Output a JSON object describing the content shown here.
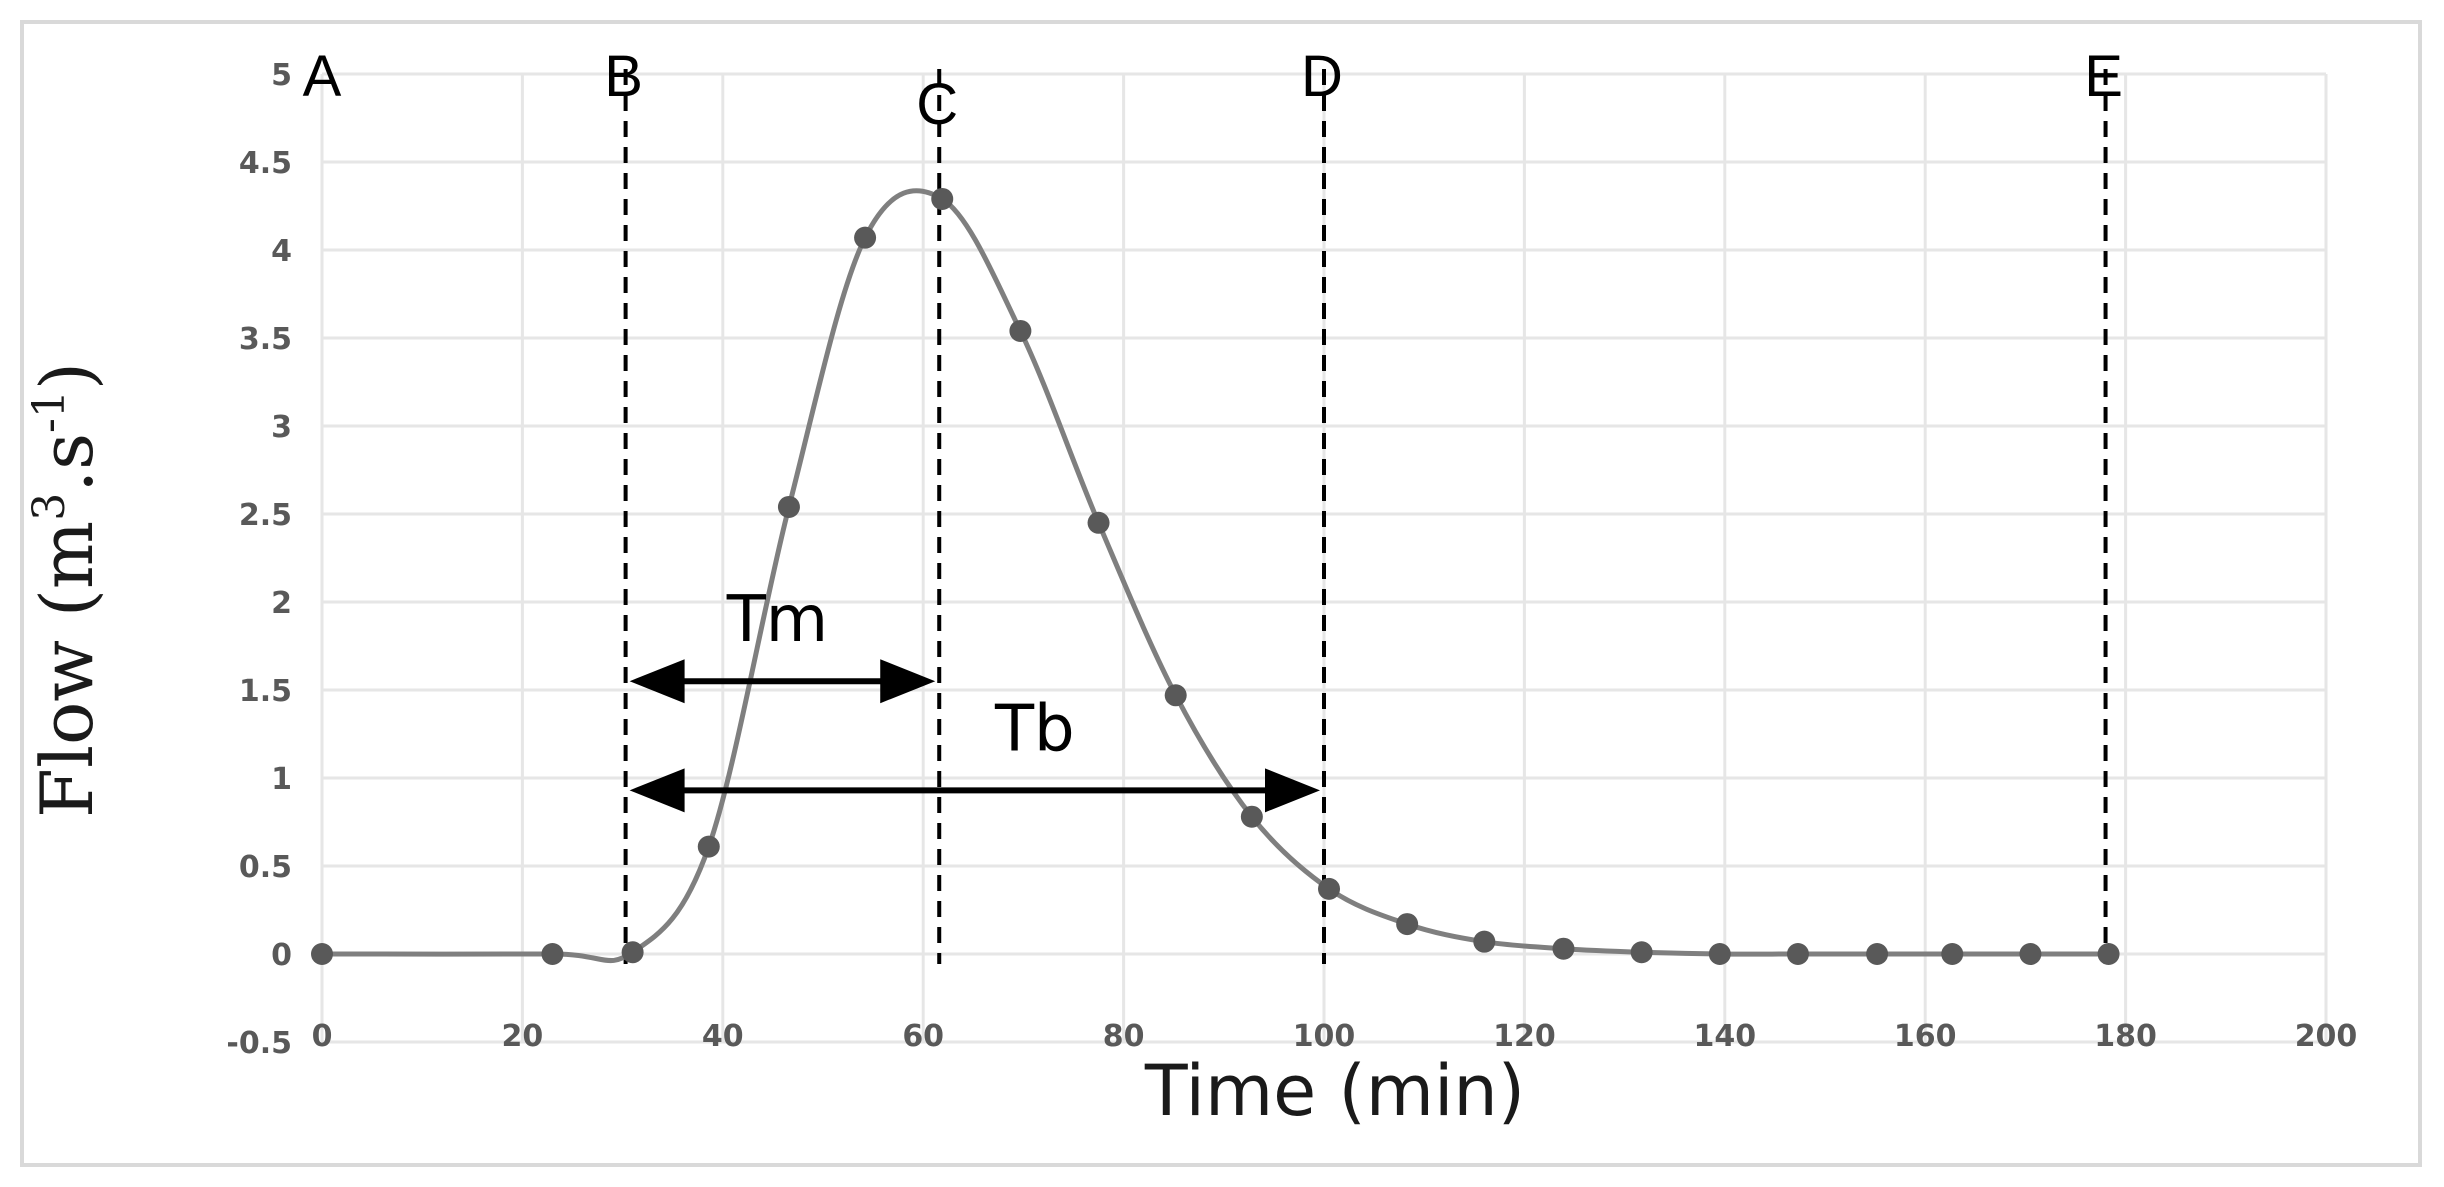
{
  "chart_data": {
    "type": "line",
    "title": "",
    "xlabel": "Time (min)",
    "ylabel": "Flow (m3.s-1)",
    "ylabel_parts": {
      "base": "Flow (m",
      "sup1": "3",
      "mid": ".s",
      "sup2": "-1",
      "end": ")"
    },
    "xlim": [
      0,
      200
    ],
    "ylim": [
      -0.5,
      5
    ],
    "xticks": [
      0,
      20,
      40,
      60,
      80,
      100,
      120,
      140,
      160,
      180,
      200
    ],
    "yticks": [
      -0.5,
      0,
      0.5,
      1,
      1.5,
      2,
      2.5,
      3,
      3.5,
      4,
      4.5,
      5
    ],
    "grid": true,
    "line_color": "#7f7f7f",
    "marker_color": "#595959",
    "smooth": true,
    "series": [
      {
        "x": [
          0,
          23,
          31,
          38.6,
          46.6,
          54.2,
          61.9,
          69.7,
          77.5,
          85.2,
          92.8,
          100.5,
          108.3,
          116,
          123.9,
          131.7,
          139.5,
          147.3,
          155.2,
          162.7,
          170.5,
          178.3
        ],
        "y": [
          0,
          0,
          0.01,
          0.61,
          2.54,
          4.07,
          4.29,
          3.54,
          2.45,
          1.47,
          0.78,
          0.37,
          0.17,
          0.07,
          0.03,
          0.01,
          0,
          0,
          0,
          0,
          0,
          0
        ]
      }
    ],
    "vertical_markers": [
      {
        "label": "A",
        "x": 0,
        "dashed": false
      },
      {
        "label": "B",
        "x": 30.3,
        "dashed": true
      },
      {
        "label": "C",
        "x": 61.6,
        "dashed": true
      },
      {
        "label": "D",
        "x": 100,
        "dashed": true
      },
      {
        "label": "E",
        "x": 178,
        "dashed": true
      }
    ],
    "annotations": [
      {
        "label": "Tm",
        "from": 30.3,
        "to": 61.6,
        "y": 1.55
      },
      {
        "label": "Tb",
        "from": 30.3,
        "to": 100,
        "y": 0.93
      }
    ]
  }
}
